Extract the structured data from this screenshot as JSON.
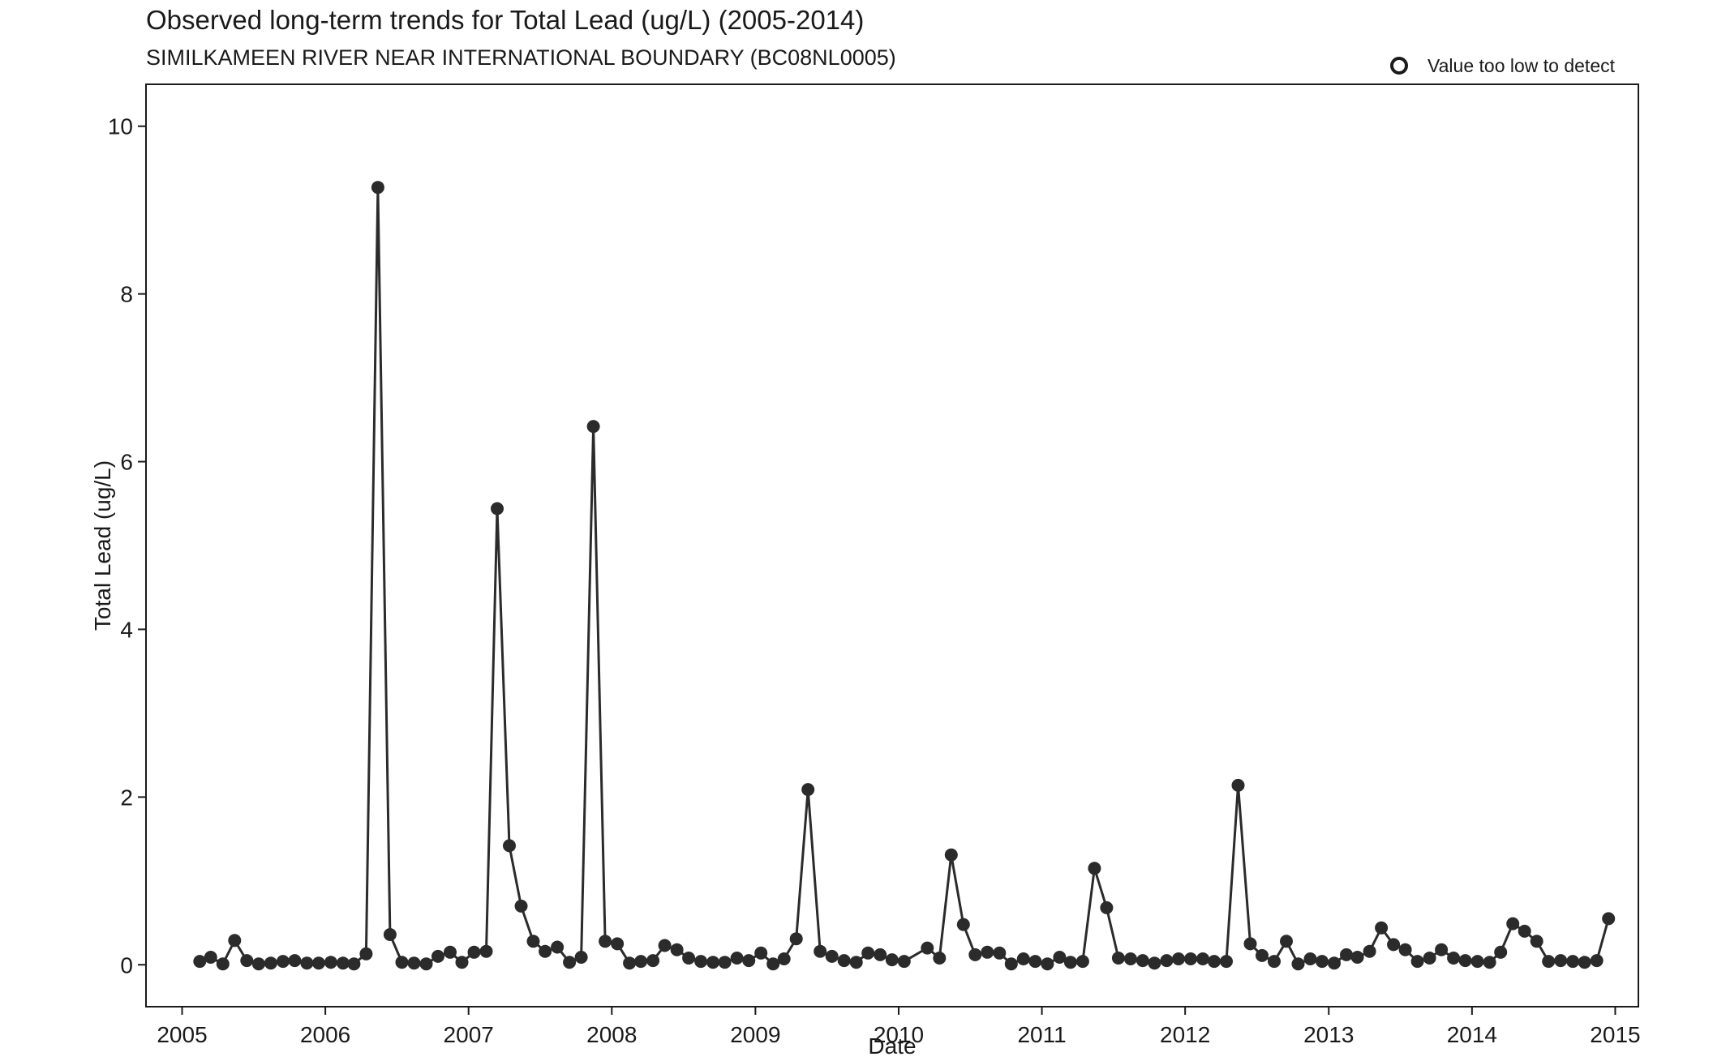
{
  "chart_data": {
    "type": "line",
    "title": "Observed long-term trends for Total Lead (ug/L) (2005-2014)",
    "subtitle": "SIMILKAMEEN RIVER NEAR INTERNATIONAL BOUNDARY (BC08NL0005)",
    "xlabel": "Date",
    "ylabel": "Total Lead (ug/L)",
    "xlim": [
      "2004-10-01",
      "2015-03-01"
    ],
    "ylim": [
      -0.5,
      10.5
    ],
    "x_ticks": [
      "2005",
      "2006",
      "2007",
      "2008",
      "2009",
      "2010",
      "2011",
      "2012",
      "2013",
      "2014",
      "2015"
    ],
    "y_ticks": [
      0,
      2,
      4,
      6,
      8,
      10
    ],
    "grid": false,
    "legend": {
      "position": "top-right",
      "entries": [
        {
          "label": "Value too low to detect",
          "marker": "open-circle"
        }
      ]
    },
    "colors": {
      "series": "#2b2b2b",
      "axis": "#1a1a1a"
    },
    "series": [
      {
        "points": [
          [
            "2005-02-15",
            0.04
          ],
          [
            "2005-03-15",
            0.09
          ],
          [
            "2005-04-15",
            0.01
          ],
          [
            "2005-05-15",
            0.29
          ],
          [
            "2005-06-15",
            0.05
          ],
          [
            "2005-07-15",
            0.01
          ],
          [
            "2005-08-15",
            0.02
          ],
          [
            "2005-09-15",
            0.04
          ],
          [
            "2005-10-15",
            0.05
          ],
          [
            "2005-11-15",
            0.02
          ],
          [
            "2005-12-15",
            0.02
          ],
          [
            "2006-01-15",
            0.03
          ],
          [
            "2006-02-15",
            0.02
          ],
          [
            "2006-03-15",
            0.01
          ],
          [
            "2006-04-15",
            0.13
          ],
          [
            "2006-05-15",
            9.27
          ],
          [
            "2006-06-15",
            0.36
          ],
          [
            "2006-07-15",
            0.03
          ],
          [
            "2006-08-15",
            0.02
          ],
          [
            "2006-09-15",
            0.01
          ],
          [
            "2006-10-15",
            0.1
          ],
          [
            "2006-11-15",
            0.15
          ],
          [
            "2006-12-15",
            0.03
          ],
          [
            "2007-01-15",
            0.15
          ],
          [
            "2007-02-15",
            0.16
          ],
          [
            "2007-03-15",
            5.44
          ],
          [
            "2007-04-15",
            1.42
          ],
          [
            "2007-05-15",
            0.7
          ],
          [
            "2007-06-15",
            0.28
          ],
          [
            "2007-07-15",
            0.16
          ],
          [
            "2007-08-15",
            0.21
          ],
          [
            "2007-09-15",
            0.03
          ],
          [
            "2007-10-15",
            0.09
          ],
          [
            "2007-11-15",
            6.42
          ],
          [
            "2007-12-15",
            0.28
          ],
          [
            "2008-01-15",
            0.25
          ],
          [
            "2008-02-15",
            0.02
          ],
          [
            "2008-03-15",
            0.04
          ],
          [
            "2008-04-15",
            0.05
          ],
          [
            "2008-05-15",
            0.23
          ],
          [
            "2008-06-15",
            0.18
          ],
          [
            "2008-07-15",
            0.08
          ],
          [
            "2008-08-15",
            0.04
          ],
          [
            "2008-09-15",
            0.03
          ],
          [
            "2008-10-15",
            0.03
          ],
          [
            "2008-11-15",
            0.08
          ],
          [
            "2008-12-15",
            0.05
          ],
          [
            "2009-01-15",
            0.14
          ],
          [
            "2009-02-15",
            0.01
          ],
          [
            "2009-03-15",
            0.07
          ],
          [
            "2009-04-15",
            0.31
          ],
          [
            "2009-05-15",
            2.09
          ],
          [
            "2009-06-15",
            0.16
          ],
          [
            "2009-07-15",
            0.1
          ],
          [
            "2009-08-15",
            0.05
          ],
          [
            "2009-09-15",
            0.03
          ],
          [
            "2009-10-15",
            0.14
          ],
          [
            "2009-11-15",
            0.12
          ],
          [
            "2009-12-15",
            0.06
          ],
          [
            "2010-01-15",
            0.04
          ],
          [
            "2010-03-15",
            0.2
          ],
          [
            "2010-04-15",
            0.08
          ],
          [
            "2010-05-15",
            1.31
          ],
          [
            "2010-06-15",
            0.48
          ],
          [
            "2010-07-15",
            0.12
          ],
          [
            "2010-08-15",
            0.15
          ],
          [
            "2010-09-15",
            0.14
          ],
          [
            "2010-10-15",
            0.01
          ],
          [
            "2010-11-15",
            0.07
          ],
          [
            "2010-12-15",
            0.04
          ],
          [
            "2011-01-15",
            0.01
          ],
          [
            "2011-02-15",
            0.09
          ],
          [
            "2011-03-15",
            0.03
          ],
          [
            "2011-04-15",
            0.04
          ],
          [
            "2011-05-15",
            1.15
          ],
          [
            "2011-06-15",
            0.68
          ],
          [
            "2011-07-15",
            0.08
          ],
          [
            "2011-08-15",
            0.07
          ],
          [
            "2011-09-15",
            0.05
          ],
          [
            "2011-10-15",
            0.02
          ],
          [
            "2011-11-15",
            0.05
          ],
          [
            "2011-12-15",
            0.07
          ],
          [
            "2012-01-15",
            0.07
          ],
          [
            "2012-02-15",
            0.07
          ],
          [
            "2012-03-15",
            0.04
          ],
          [
            "2012-04-15",
            0.04
          ],
          [
            "2012-05-15",
            2.14
          ],
          [
            "2012-06-15",
            0.25
          ],
          [
            "2012-07-15",
            0.11
          ],
          [
            "2012-08-15",
            0.04
          ],
          [
            "2012-09-15",
            0.28
          ],
          [
            "2012-10-15",
            0.01
          ],
          [
            "2012-11-15",
            0.07
          ],
          [
            "2012-12-15",
            0.04
          ],
          [
            "2013-01-15",
            0.02
          ],
          [
            "2013-02-15",
            0.12
          ],
          [
            "2013-03-15",
            0.09
          ],
          [
            "2013-04-15",
            0.16
          ],
          [
            "2013-05-15",
            0.44
          ],
          [
            "2013-06-15",
            0.24
          ],
          [
            "2013-07-15",
            0.18
          ],
          [
            "2013-08-15",
            0.04
          ],
          [
            "2013-09-15",
            0.08
          ],
          [
            "2013-10-15",
            0.18
          ],
          [
            "2013-11-15",
            0.08
          ],
          [
            "2013-12-15",
            0.05
          ],
          [
            "2014-01-15",
            0.04
          ],
          [
            "2014-02-15",
            0.03
          ],
          [
            "2014-03-15",
            0.15
          ],
          [
            "2014-04-15",
            0.49
          ],
          [
            "2014-05-15",
            0.4
          ],
          [
            "2014-06-15",
            0.28
          ],
          [
            "2014-07-15",
            0.04
          ],
          [
            "2014-08-15",
            0.05
          ],
          [
            "2014-09-15",
            0.04
          ],
          [
            "2014-10-15",
            0.03
          ],
          [
            "2014-11-15",
            0.05
          ],
          [
            "2014-12-15",
            0.55
          ]
        ]
      }
    ]
  }
}
